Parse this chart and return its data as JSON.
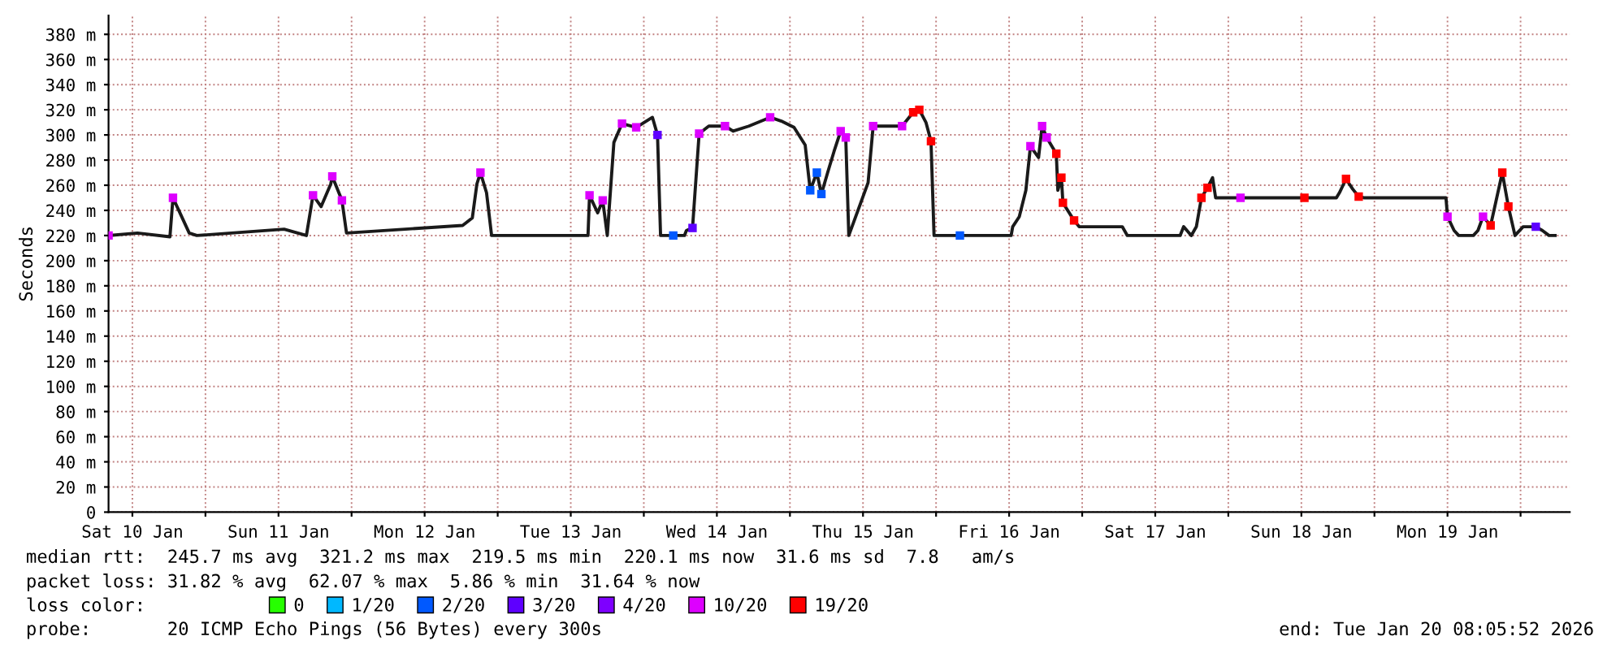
{
  "chart_data": {
    "type": "line",
    "ylabel": "Seconds",
    "legend_title": "loss color:",
    "legend": "bottom",
    "grid": true,
    "xlim": [
      "2026-01-10T08:05",
      "2026-01-20T08:05"
    ],
    "xticks": [
      {
        "value": "2026-01-10T12:00",
        "label": "Sat 10 Jan"
      },
      {
        "value": "2026-01-11T00:00",
        "label": null
      },
      {
        "value": "2026-01-11T12:00",
        "label": "Sun 11 Jan"
      },
      {
        "value": "2026-01-12T00:00",
        "label": null
      },
      {
        "value": "2026-01-12T12:00",
        "label": "Mon 12 Jan"
      },
      {
        "value": "2026-01-13T00:00",
        "label": null
      },
      {
        "value": "2026-01-13T12:00",
        "label": "Tue 13 Jan"
      },
      {
        "value": "2026-01-14T00:00",
        "label": null
      },
      {
        "value": "2026-01-14T12:00",
        "label": "Wed 14 Jan"
      },
      {
        "value": "2026-01-15T00:00",
        "label": null
      },
      {
        "value": "2026-01-15T12:00",
        "label": "Thu 15 Jan"
      },
      {
        "value": "2026-01-16T00:00",
        "label": null
      },
      {
        "value": "2026-01-16T12:00",
        "label": "Fri 16 Jan"
      },
      {
        "value": "2026-01-17T00:00",
        "label": null
      },
      {
        "value": "2026-01-17T12:00",
        "label": "Sat 17 Jan"
      },
      {
        "value": "2026-01-18T00:00",
        "label": null
      },
      {
        "value": "2026-01-18T12:00",
        "label": "Sun 18 Jan"
      },
      {
        "value": "2026-01-19T00:00",
        "label": null
      },
      {
        "value": "2026-01-19T12:00",
        "label": "Mon 19 Jan"
      },
      {
        "value": "2026-01-20T00:00",
        "label": null
      }
    ],
    "ylim": [
      0,
      395
    ],
    "yticks": [
      {
        "value": 0,
        "label": "0"
      },
      {
        "value": 20,
        "label": "20 m"
      },
      {
        "value": 40,
        "label": "40 m"
      },
      {
        "value": 60,
        "label": "60 m"
      },
      {
        "value": 80,
        "label": "80 m"
      },
      {
        "value": 100,
        "label": "100 m"
      },
      {
        "value": 120,
        "label": "120 m"
      },
      {
        "value": 140,
        "label": "140 m"
      },
      {
        "value": 160,
        "label": "160 m"
      },
      {
        "value": 180,
        "label": "180 m"
      },
      {
        "value": 200,
        "label": "200 m"
      },
      {
        "value": 220,
        "label": "220 m"
      },
      {
        "value": 240,
        "label": "240 m"
      },
      {
        "value": 260,
        "label": "260 m"
      },
      {
        "value": 280,
        "label": "280 m"
      },
      {
        "value": 300,
        "label": "300 m"
      },
      {
        "value": 320,
        "label": "320 m"
      },
      {
        "value": 340,
        "label": "340 m"
      },
      {
        "value": 360,
        "label": "360 m"
      },
      {
        "value": 380,
        "label": "380 m"
      }
    ],
    "series": [
      {
        "color": "#1a1a1a",
        "x": [
          "2026-01-10T08:05",
          "2026-01-10T12:50",
          "2026-01-10T18:10",
          "2026-01-10T18:40",
          "2026-01-10T20:00",
          "2026-01-10T21:20",
          "2026-01-10T22:35",
          "2026-01-11T12:55",
          "2026-01-11T16:35",
          "2026-01-11T17:40",
          "2026-01-11T19:00",
          "2026-01-11T20:35",
          "2026-01-11T20:50",
          "2026-01-11T22:25",
          "2026-01-11T23:10",
          "2026-01-12T18:15",
          "2026-01-12T19:50",
          "2026-01-12T20:35",
          "2026-01-12T21:10",
          "2026-01-12T22:10",
          "2026-01-12T23:00",
          "2026-01-13T14:50",
          "2026-01-13T15:05",
          "2026-01-13T16:25",
          "2026-01-13T17:15",
          "2026-01-13T18:00",
          "2026-01-13T19:05",
          "2026-01-13T20:25",
          "2026-01-13T22:45",
          "2026-01-14T01:25",
          "2026-01-14T02:15",
          "2026-01-14T02:45",
          "2026-01-14T06:40",
          "2026-01-14T07:00",
          "2026-01-14T08:00",
          "2026-01-14T09:05",
          "2026-01-14T10:40",
          "2026-01-14T13:20",
          "2026-01-14T14:40",
          "2026-01-14T17:15",
          "2026-01-14T20:45",
          "2026-01-14T22:35",
          "2026-01-15T00:40",
          "2026-01-15T02:30",
          "2026-01-15T03:20",
          "2026-01-15T04:25",
          "2026-01-15T05:10",
          "2026-01-15T06:15",
          "2026-01-15T07:15",
          "2026-01-15T08:20",
          "2026-01-15T09:10",
          "2026-01-15T09:40",
          "2026-01-15T12:50",
          "2026-01-15T13:40",
          "2026-01-15T18:25",
          "2026-01-15T20:15",
          "2026-01-15T21:15",
          "2026-01-15T22:20",
          "2026-01-15T23:10",
          "2026-01-15T23:40",
          "2026-01-16T12:20",
          "2026-01-16T12:35",
          "2026-01-16T13:40",
          "2026-01-16T14:45",
          "2026-01-16T15:30",
          "2026-01-16T16:50",
          "2026-01-16T17:25",
          "2026-01-16T18:10",
          "2026-01-16T19:45",
          "2026-01-16T20:00",
          "2026-01-16T20:35",
          "2026-01-16T20:50",
          "2026-01-16T22:40",
          "2026-01-16T23:30",
          "2026-01-17T06:35",
          "2026-01-17T07:25",
          "2026-01-17T16:05",
          "2026-01-17T16:40",
          "2026-01-17T17:55",
          "2026-01-17T18:45",
          "2026-01-17T19:35",
          "2026-01-17T20:35",
          "2026-01-17T21:25",
          "2026-01-17T21:55",
          "2026-01-18T17:45",
          "2026-01-18T18:15",
          "2026-01-18T19:20",
          "2026-01-18T20:25",
          "2026-01-18T21:25",
          "2026-01-18T22:15",
          "2026-01-19T11:45",
          "2026-01-19T12:00",
          "2026-01-19T13:05",
          "2026-01-19T13:50",
          "2026-01-19T16:15",
          "2026-01-19T17:00",
          "2026-01-19T17:50",
          "2026-01-19T19:05",
          "2026-01-19T21:00",
          "2026-01-19T22:00",
          "2026-01-19T23:05",
          "2026-01-20T00:25",
          "2026-01-20T02:30",
          "2026-01-20T03:35",
          "2026-01-20T04:40",
          "2026-01-20T05:40"
        ],
        "values": [
          220,
          222,
          219,
          250,
          236,
          222,
          220,
          225,
          220,
          252,
          243,
          261,
          267,
          248,
          222,
          228,
          234,
          261,
          270,
          254,
          220,
          220,
          252,
          238,
          248,
          220,
          294,
          309,
          306,
          314,
          300,
          220,
          220,
          224,
          226,
          301,
          307,
          307,
          303,
          307,
          314,
          311,
          306,
          292,
          256,
          270,
          253,
          271,
          287,
          303,
          298,
          220,
          262,
          307,
          307,
          318,
          320,
          310,
          295,
          220,
          220,
          227,
          235,
          256,
          291,
          282,
          307,
          298,
          285,
          256,
          266,
          246,
          232,
          227,
          227,
          220,
          220,
          227,
          220,
          227,
          250,
          258,
          266,
          250,
          250,
          254,
          265,
          257,
          251,
          250,
          250,
          235,
          224,
          220,
          220,
          224,
          235,
          228,
          270,
          243,
          220,
          227,
          227,
          224,
          220,
          220
        ]
      },
      {
        "type": "scatter",
        "marker": "square",
        "name": "0",
        "color": "#26ff00"
      },
      {
        "type": "scatter",
        "marker": "square",
        "name": "1/20",
        "color": "#00b8ff"
      },
      {
        "type": "scatter",
        "marker": "square",
        "name": "2/20",
        "color": "#0059ff",
        "x": [
          "2026-01-14T04:50",
          "2026-01-15T03:20",
          "2026-01-15T04:25",
          "2026-01-15T05:10",
          "2026-01-16T03:55"
        ],
        "values": [
          220,
          256,
          270,
          253,
          220
        ]
      },
      {
        "type": "scatter",
        "marker": "square",
        "name": "3/20",
        "color": "#5e00ff",
        "x": [
          "2026-01-14T02:15",
          "2026-01-14T08:00",
          "2026-01-20T02:30"
        ],
        "values": [
          300,
          226,
          227
        ]
      },
      {
        "type": "scatter",
        "marker": "square",
        "name": "4/20",
        "color": "#7e00ff"
      },
      {
        "type": "scatter",
        "marker": "square",
        "name": "10/20",
        "color": "#dd00ff",
        "x": [
          "2026-01-10T08:05",
          "2026-01-10T18:40",
          "2026-01-11T17:40",
          "2026-01-11T20:50",
          "2026-01-11T22:25",
          "2026-01-12T21:10",
          "2026-01-13T15:05",
          "2026-01-13T17:15",
          "2026-01-13T20:25",
          "2026-01-13T22:45",
          "2026-01-14T09:05",
          "2026-01-14T13:20",
          "2026-01-14T20:45",
          "2026-01-15T08:20",
          "2026-01-15T09:10",
          "2026-01-15T13:40",
          "2026-01-15T18:25",
          "2026-01-16T15:30",
          "2026-01-16T17:25",
          "2026-01-16T18:10",
          "2026-01-18T02:00",
          "2026-01-19T12:00",
          "2026-01-19T17:50"
        ],
        "values": [
          220,
          250,
          252,
          267,
          248,
          270,
          252,
          248,
          309,
          306,
          301,
          307,
          314,
          303,
          298,
          307,
          307,
          291,
          307,
          298,
          250,
          235,
          235
        ]
      },
      {
        "type": "scatter",
        "marker": "square",
        "name": "19/20",
        "color": "#ff0000",
        "x": [
          "2026-01-15T20:15",
          "2026-01-15T21:15",
          "2026-01-15T23:10",
          "2026-01-16T19:45",
          "2026-01-16T20:35",
          "2026-01-16T20:50",
          "2026-01-16T22:40",
          "2026-01-17T19:35",
          "2026-01-17T20:35",
          "2026-01-18T12:30",
          "2026-01-18T19:20",
          "2026-01-18T21:25",
          "2026-01-19T19:05",
          "2026-01-19T21:00",
          "2026-01-19T22:00"
        ],
        "values": [
          318,
          320,
          295,
          285,
          266,
          246,
          232,
          250,
          258,
          250,
          265,
          251,
          228,
          270,
          243
        ]
      }
    ],
    "annotations": [
      "median rtt:  245.7 ms avg  321.2 ms max  219.5 ms min  220.1 ms now  31.6 ms sd  7.8   am/s",
      "packet loss: 31.82 % avg  62.07 % max  5.86 % min  31.64 % now",
      "probe:       20 ICMP Echo Pings (56 Bytes) every 300s",
      "end: Tue Jan 20 08:05:52 2026"
    ]
  }
}
